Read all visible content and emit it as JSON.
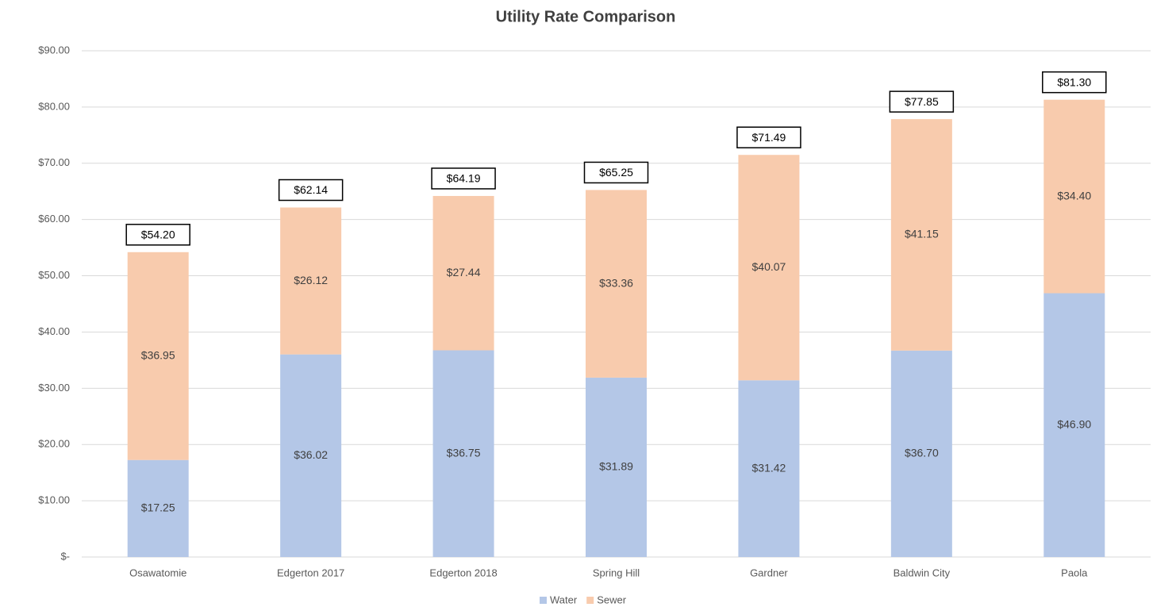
{
  "chart_data": {
    "type": "stacked_bar",
    "title": "Utility Rate Comparison",
    "categories": [
      "Osawatomie",
      "Edgerton 2017",
      "Edgerton 2018",
      "Spring Hill",
      "Gardner",
      "Baldwin City",
      "Paola"
    ],
    "series": [
      {
        "name": "Water",
        "color": "#b4c7e7",
        "values": [
          17.25,
          36.02,
          36.75,
          31.89,
          31.42,
          36.7,
          46.9
        ],
        "value_labels": [
          "$17.25",
          "$36.02",
          "$36.75",
          "$31.89",
          "$31.42",
          "$36.70",
          "$46.90"
        ]
      },
      {
        "name": "Sewer",
        "color": "#f8cbad",
        "values": [
          36.95,
          26.12,
          27.44,
          33.36,
          40.07,
          41.15,
          34.4
        ],
        "value_labels": [
          "$36.95",
          "$26.12",
          "$27.44",
          "$33.36",
          "$40.07",
          "$41.15",
          "$34.40"
        ]
      }
    ],
    "total_labels": [
      "$54.20",
      "$62.14",
      "$64.19",
      "$65.25",
      "$71.49",
      "$77.85",
      "$81.30"
    ],
    "ylim": [
      0,
      90
    ],
    "yticks": [
      {
        "value": 0,
        "label": "$-"
      },
      {
        "value": 10,
        "label": "$10.00"
      },
      {
        "value": 20,
        "label": "$20.00"
      },
      {
        "value": 30,
        "label": "$30.00"
      },
      {
        "value": 40,
        "label": "$40.00"
      },
      {
        "value": 50,
        "label": "$50.00"
      },
      {
        "value": 60,
        "label": "$60.00"
      },
      {
        "value": 70,
        "label": "$70.00"
      },
      {
        "value": 80,
        "label": "$80.00"
      },
      {
        "value": 90,
        "label": "$90.00"
      }
    ],
    "grid": true,
    "legend": "bottom"
  }
}
